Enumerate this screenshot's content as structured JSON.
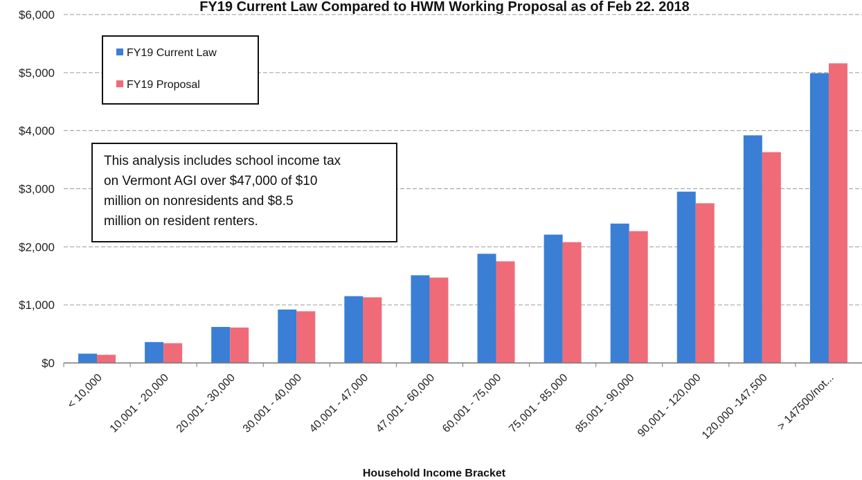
{
  "chart_data": {
    "type": "bar",
    "title": "FY19 Current Law Compared to HWM Working Proposal as of Feb 22. 2018",
    "xlabel": "Household Income Bracket",
    "ylabel": "",
    "ylim": [
      0,
      6000
    ],
    "yticks": [
      "$0",
      "$1,000",
      "$2,000",
      "$3,000",
      "$4,000",
      "$5,000",
      "$6,000"
    ],
    "grid": true,
    "legend_position": "top-left",
    "categories": [
      "< 10,000",
      "10,001 - 20,000",
      "20,001 - 30,000",
      "30,001 - 40,000",
      "40,001 - 47,000",
      "47,001 - 60,000",
      "60,001 - 75,000",
      "75,001 - 85,000",
      "85,001 - 90,000",
      "90,001 - 120,000",
      "120,000 -147,500",
      "> 147500/not..."
    ],
    "series": [
      {
        "name": "FY19 Current Law",
        "color": "#3a7fd5",
        "values": [
          160,
          360,
          620,
          920,
          1150,
          1510,
          1880,
          2210,
          2400,
          2950,
          3920,
          4990
        ]
      },
      {
        "name": "FY19 Proposal",
        "color": "#f06b78",
        "values": [
          140,
          340,
          610,
          890,
          1130,
          1470,
          1750,
          2080,
          2270,
          2750,
          3630,
          5160
        ]
      }
    ],
    "annotation": [
      "This analysis includes school income tax",
      "on Vermont AGI over $47,000 of $10",
      "million on nonresidents and $8.5",
      "million on resident renters."
    ]
  }
}
